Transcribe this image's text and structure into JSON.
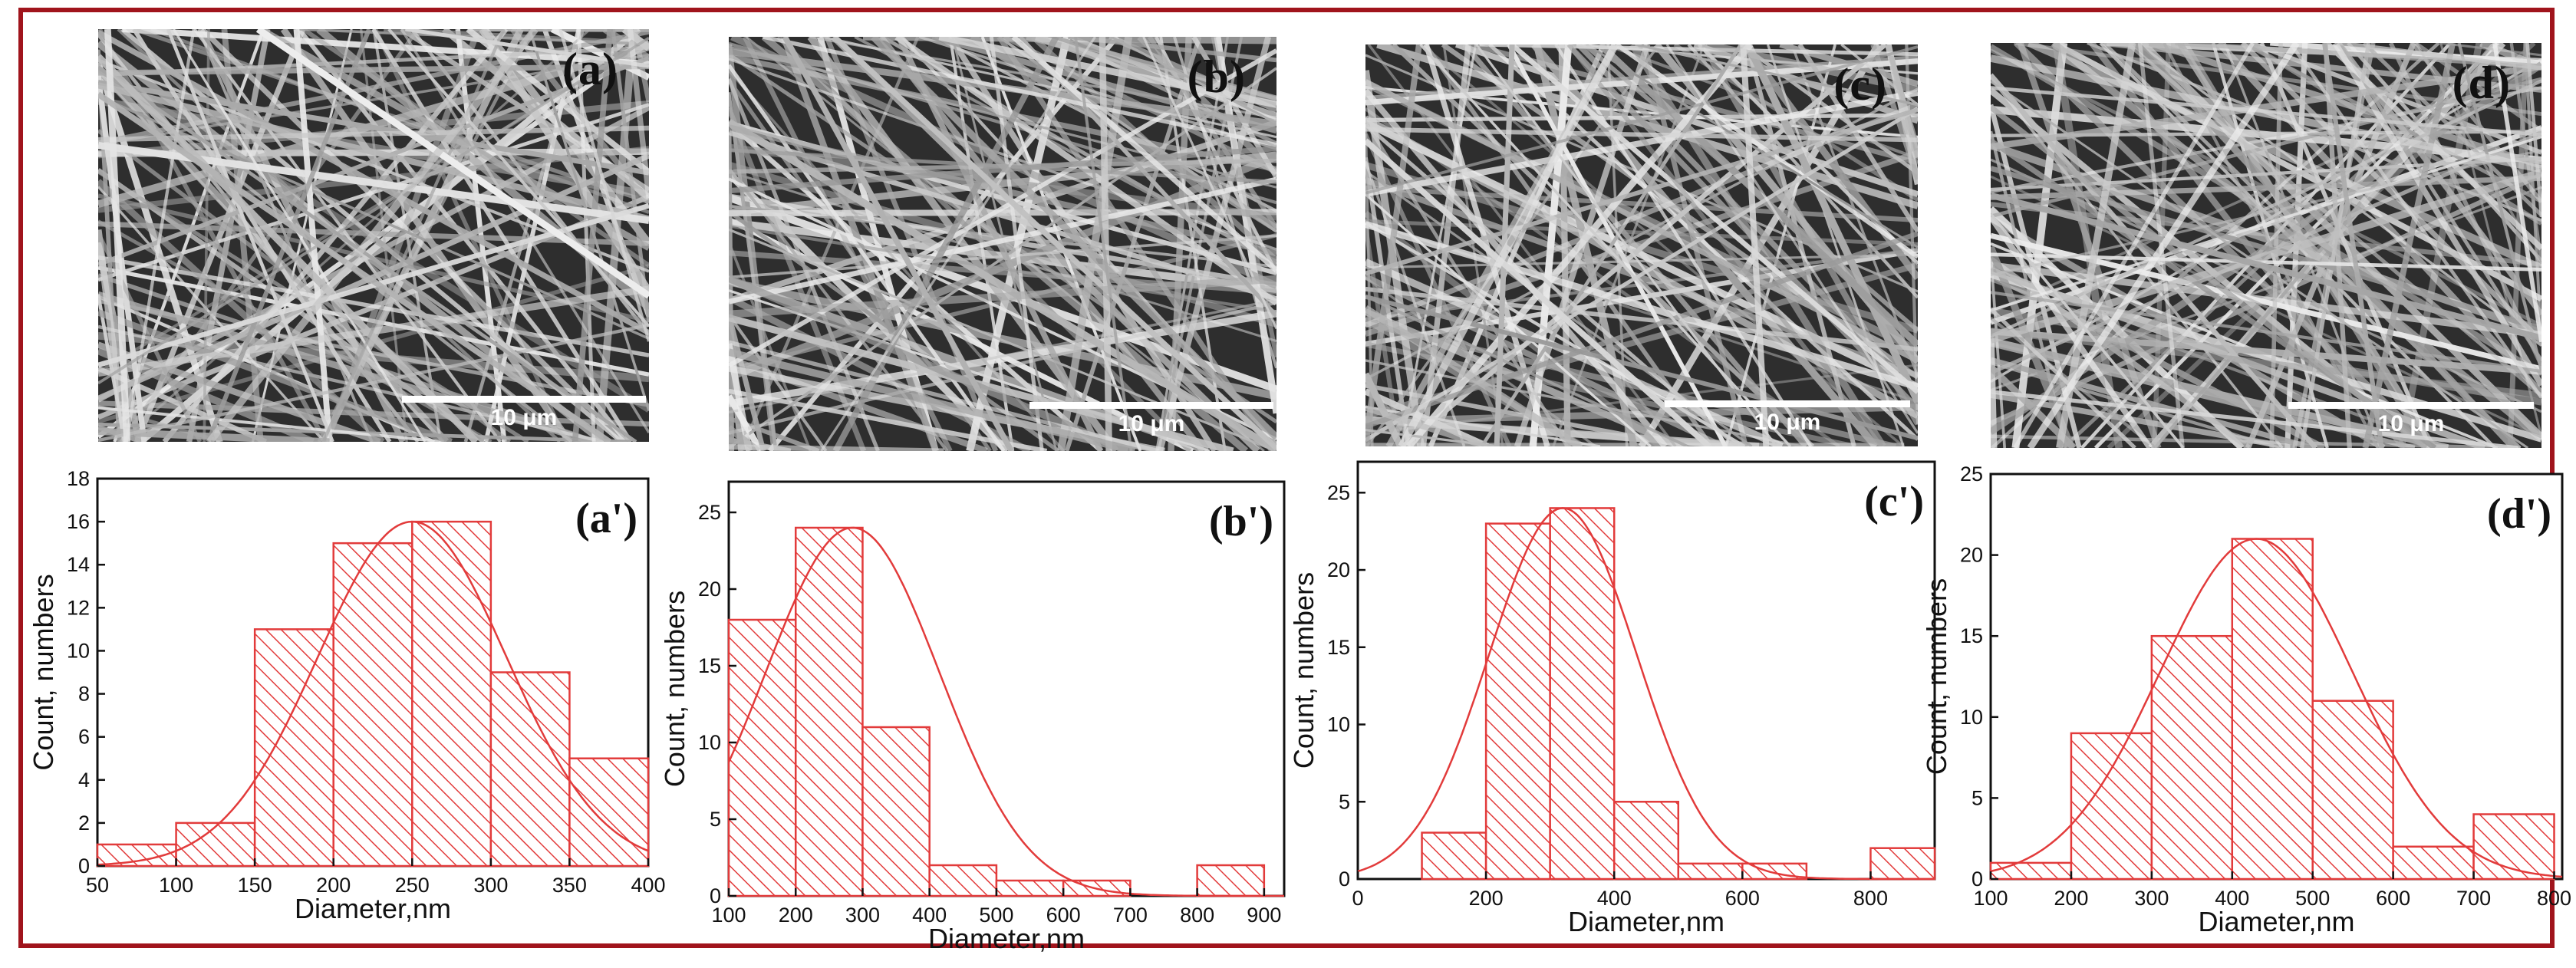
{
  "figure": {
    "accent_color": "#a0141c",
    "bar_color": "#e23b3b",
    "sem_images": [
      {
        "label": "(a)",
        "scale_bar": "10 μm"
      },
      {
        "label": "(b)",
        "scale_bar": "10 μm"
      },
      {
        "label": "(c)",
        "scale_bar": "10 μm"
      },
      {
        "label": "(d)",
        "scale_bar": "10 μm"
      }
    ]
  },
  "chart_data": [
    {
      "type": "bar",
      "label": "(a')",
      "xlabel": "Diameter,nm",
      "ylabel": "Count, numbers",
      "xlim": [
        50,
        400
      ],
      "ylim": [
        0,
        18
      ],
      "xticks": [
        50,
        100,
        150,
        200,
        250,
        300,
        350,
        400
      ],
      "yticks": [
        0,
        2,
        4,
        6,
        8,
        10,
        12,
        14,
        16,
        18
      ],
      "bins": [
        [
          50,
          100
        ],
        [
          100,
          150
        ],
        [
          150,
          200
        ],
        [
          200,
          250
        ],
        [
          250,
          300
        ],
        [
          300,
          350
        ],
        [
          350,
          400
        ]
      ],
      "values": [
        1,
        2,
        11,
        15,
        16,
        9,
        5
      ],
      "fit": {
        "type": "gaussian",
        "peak": 16,
        "center": 250,
        "sigma": 60
      }
    },
    {
      "type": "bar",
      "label": "(b')",
      "xlabel": "Diameter,nm",
      "ylabel": "Count, numbers",
      "xlim": [
        100,
        930
      ],
      "ylim": [
        0,
        27
      ],
      "xticks": [
        100,
        200,
        300,
        400,
        500,
        600,
        700,
        800,
        900
      ],
      "yticks": [
        0,
        5,
        10,
        15,
        20,
        25
      ],
      "bins": [
        [
          100,
          200
        ],
        [
          200,
          300
        ],
        [
          300,
          400
        ],
        [
          400,
          500
        ],
        [
          500,
          600
        ],
        [
          600,
          700
        ],
        [
          700,
          800
        ],
        [
          800,
          900
        ]
      ],
      "values": [
        18,
        24,
        11,
        2,
        1,
        1,
        0,
        2
      ],
      "fit": {
        "type": "gaussian",
        "peak": 24,
        "center": 285,
        "sigma": 130
      }
    },
    {
      "type": "bar",
      "label": "(c')",
      "xlabel": "Diameter,nm",
      "ylabel": "Count, numbers",
      "xlim": [
        0,
        900
      ],
      "ylim": [
        0,
        27
      ],
      "xticks": [
        0,
        200,
        400,
        600,
        800
      ],
      "yticks": [
        0,
        5,
        10,
        15,
        20,
        25
      ],
      "bins": [
        [
          100,
          200
        ],
        [
          200,
          300
        ],
        [
          300,
          400
        ],
        [
          400,
          500
        ],
        [
          500,
          600
        ],
        [
          600,
          700
        ],
        [
          700,
          800
        ],
        [
          800,
          900
        ]
      ],
      "values": [
        3,
        23,
        24,
        5,
        1,
        1,
        0,
        2
      ],
      "fit": {
        "type": "gaussian",
        "peak": 24,
        "center": 320,
        "sigma": 115
      }
    },
    {
      "type": "bar",
      "label": "(d')",
      "xlabel": "Diameter,nm",
      "ylabel": "Count, numbers",
      "xlim": [
        100,
        810
      ],
      "ylim": [
        0,
        25
      ],
      "xticks": [
        100,
        200,
        300,
        400,
        500,
        600,
        700,
        800
      ],
      "yticks": [
        0,
        5,
        10,
        15,
        20,
        25
      ],
      "bins": [
        [
          100,
          200
        ],
        [
          200,
          300
        ],
        [
          300,
          400
        ],
        [
          400,
          500
        ],
        [
          500,
          600
        ],
        [
          600,
          700
        ],
        [
          700,
          800
        ]
      ],
      "values": [
        1,
        9,
        15,
        21,
        11,
        2,
        4
      ],
      "fit": {
        "type": "gaussian",
        "peak": 21,
        "center": 430,
        "sigma": 120
      }
    }
  ]
}
